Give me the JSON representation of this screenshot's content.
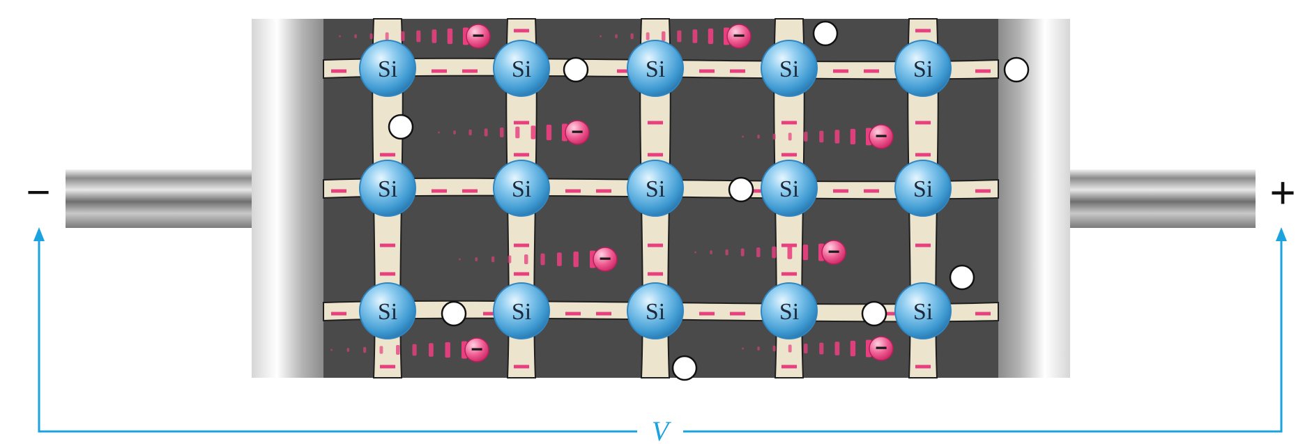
{
  "diagram": {
    "atom_label": "Si",
    "negative_terminal": "−",
    "positive_terminal": "+",
    "voltage_label": "V",
    "electron_sign": "−",
    "lattice": {
      "rows": 3,
      "cols": 5
    },
    "colors": {
      "lattice_background": "#4a4a4a",
      "bond": "#ece4cc",
      "atom": "#4aa3d8",
      "electron": "#e8407f",
      "voltage_line": "#1aa3de"
    }
  }
}
